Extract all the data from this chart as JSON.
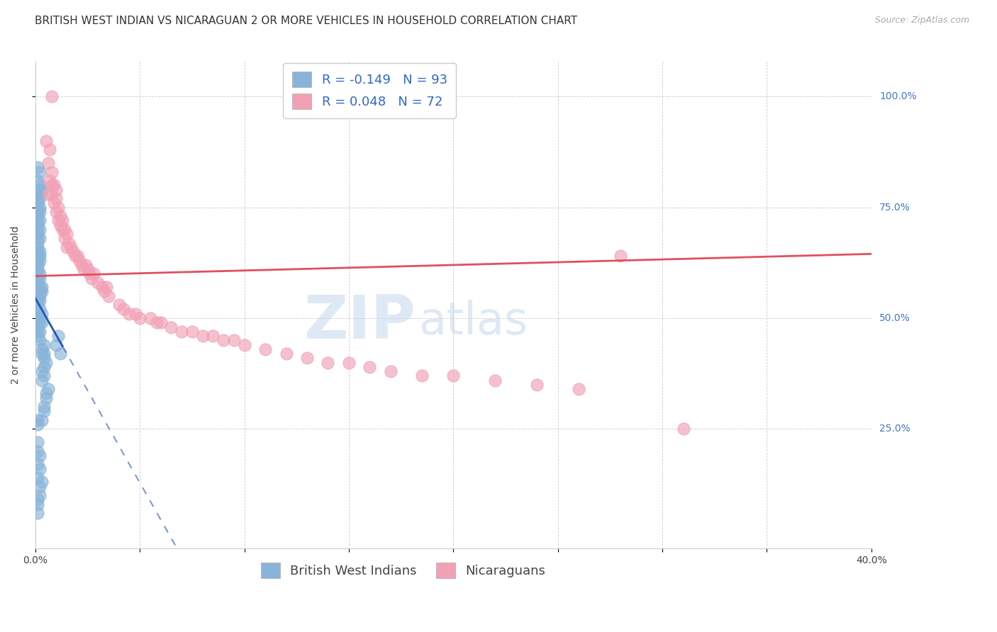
{
  "title": "BRITISH WEST INDIAN VS NICARAGUAN 2 OR MORE VEHICLES IN HOUSEHOLD CORRELATION CHART",
  "source": "Source: ZipAtlas.com",
  "ylabel": "2 or more Vehicles in Household",
  "ytick_labels": [
    "100.0%",
    "75.0%",
    "50.0%",
    "25.0%"
  ],
  "ytick_values": [
    1.0,
    0.75,
    0.5,
    0.25
  ],
  "xlim": [
    0.0,
    0.4
  ],
  "ylim": [
    -0.02,
    1.08
  ],
  "legend_entry1": "R = -0.149   N = 93",
  "legend_entry2": "R = 0.048   N = 72",
  "legend_label1": "British West Indians",
  "legend_label2": "Nicaraguans",
  "color_blue": "#89B4D9",
  "color_pink": "#F2A0B5",
  "regression_blue_color": "#2255BB",
  "regression_pink_color": "#E05060",
  "title_fontsize": 11,
  "source_fontsize": 9,
  "axis_label_fontsize": 10,
  "tick_fontsize": 10,
  "legend_fontsize": 13,
  "bwi_x": [
    0.001,
    0.002,
    0.001,
    0.002,
    0.003,
    0.002,
    0.001,
    0.001,
    0.002,
    0.001,
    0.001,
    0.002,
    0.001,
    0.002,
    0.001,
    0.001,
    0.002,
    0.001,
    0.002,
    0.001,
    0.001,
    0.001,
    0.002,
    0.001,
    0.001,
    0.002,
    0.001,
    0.002,
    0.001,
    0.001,
    0.002,
    0.001,
    0.001,
    0.001,
    0.002,
    0.001,
    0.002,
    0.001,
    0.001,
    0.002,
    0.003,
    0.002,
    0.003,
    0.002,
    0.001,
    0.001,
    0.002,
    0.001,
    0.002,
    0.003,
    0.001,
    0.002,
    0.001,
    0.003,
    0.002,
    0.001,
    0.002,
    0.001,
    0.001,
    0.002,
    0.004,
    0.003,
    0.004,
    0.003,
    0.004,
    0.005,
    0.004,
    0.003,
    0.004,
    0.003,
    0.006,
    0.005,
    0.005,
    0.004,
    0.004,
    0.003,
    0.001,
    0.001,
    0.001,
    0.001,
    0.002,
    0.001,
    0.002,
    0.001,
    0.003,
    0.002,
    0.012,
    0.01,
    0.011,
    0.002,
    0.001,
    0.001,
    0.001
  ],
  "bwi_y": [
    0.84,
    0.83,
    0.81,
    0.8,
    0.79,
    0.79,
    0.78,
    0.77,
    0.77,
    0.76,
    0.75,
    0.75,
    0.74,
    0.74,
    0.73,
    0.72,
    0.72,
    0.71,
    0.7,
    0.7,
    0.69,
    0.68,
    0.68,
    0.67,
    0.66,
    0.65,
    0.65,
    0.64,
    0.64,
    0.63,
    0.63,
    0.62,
    0.62,
    0.61,
    0.6,
    0.6,
    0.59,
    0.59,
    0.58,
    0.57,
    0.57,
    0.56,
    0.56,
    0.55,
    0.55,
    0.54,
    0.54,
    0.53,
    0.52,
    0.51,
    0.51,
    0.5,
    0.5,
    0.49,
    0.49,
    0.48,
    0.47,
    0.47,
    0.46,
    0.45,
    0.44,
    0.43,
    0.42,
    0.42,
    0.41,
    0.4,
    0.39,
    0.38,
    0.37,
    0.36,
    0.34,
    0.33,
    0.32,
    0.3,
    0.29,
    0.27,
    0.27,
    0.26,
    0.22,
    0.2,
    0.19,
    0.17,
    0.16,
    0.14,
    0.13,
    0.12,
    0.42,
    0.44,
    0.46,
    0.1,
    0.09,
    0.08,
    0.06
  ],
  "nic_x": [
    0.008,
    0.005,
    0.007,
    0.006,
    0.008,
    0.007,
    0.009,
    0.008,
    0.01,
    0.006,
    0.008,
    0.01,
    0.009,
    0.011,
    0.01,
    0.012,
    0.011,
    0.013,
    0.012,
    0.014,
    0.013,
    0.015,
    0.014,
    0.016,
    0.015,
    0.017,
    0.018,
    0.02,
    0.019,
    0.021,
    0.022,
    0.024,
    0.023,
    0.025,
    0.026,
    0.028,
    0.027,
    0.03,
    0.032,
    0.034,
    0.033,
    0.035,
    0.04,
    0.042,
    0.045,
    0.048,
    0.05,
    0.055,
    0.058,
    0.06,
    0.065,
    0.07,
    0.075,
    0.08,
    0.085,
    0.09,
    0.095,
    0.1,
    0.11,
    0.12,
    0.13,
    0.14,
    0.15,
    0.16,
    0.17,
    0.185,
    0.2,
    0.22,
    0.24,
    0.26,
    0.31,
    0.28
  ],
  "nic_y": [
    1.0,
    0.9,
    0.88,
    0.85,
    0.83,
    0.81,
    0.8,
    0.8,
    0.79,
    0.78,
    0.78,
    0.77,
    0.76,
    0.75,
    0.74,
    0.73,
    0.72,
    0.72,
    0.71,
    0.7,
    0.7,
    0.69,
    0.68,
    0.67,
    0.66,
    0.66,
    0.65,
    0.64,
    0.64,
    0.63,
    0.62,
    0.62,
    0.61,
    0.61,
    0.6,
    0.6,
    0.59,
    0.58,
    0.57,
    0.57,
    0.56,
    0.55,
    0.53,
    0.52,
    0.51,
    0.51,
    0.5,
    0.5,
    0.49,
    0.49,
    0.48,
    0.47,
    0.47,
    0.46,
    0.46,
    0.45,
    0.45,
    0.44,
    0.43,
    0.42,
    0.41,
    0.4,
    0.4,
    0.39,
    0.38,
    0.37,
    0.37,
    0.36,
    0.35,
    0.34,
    0.25,
    0.64
  ]
}
